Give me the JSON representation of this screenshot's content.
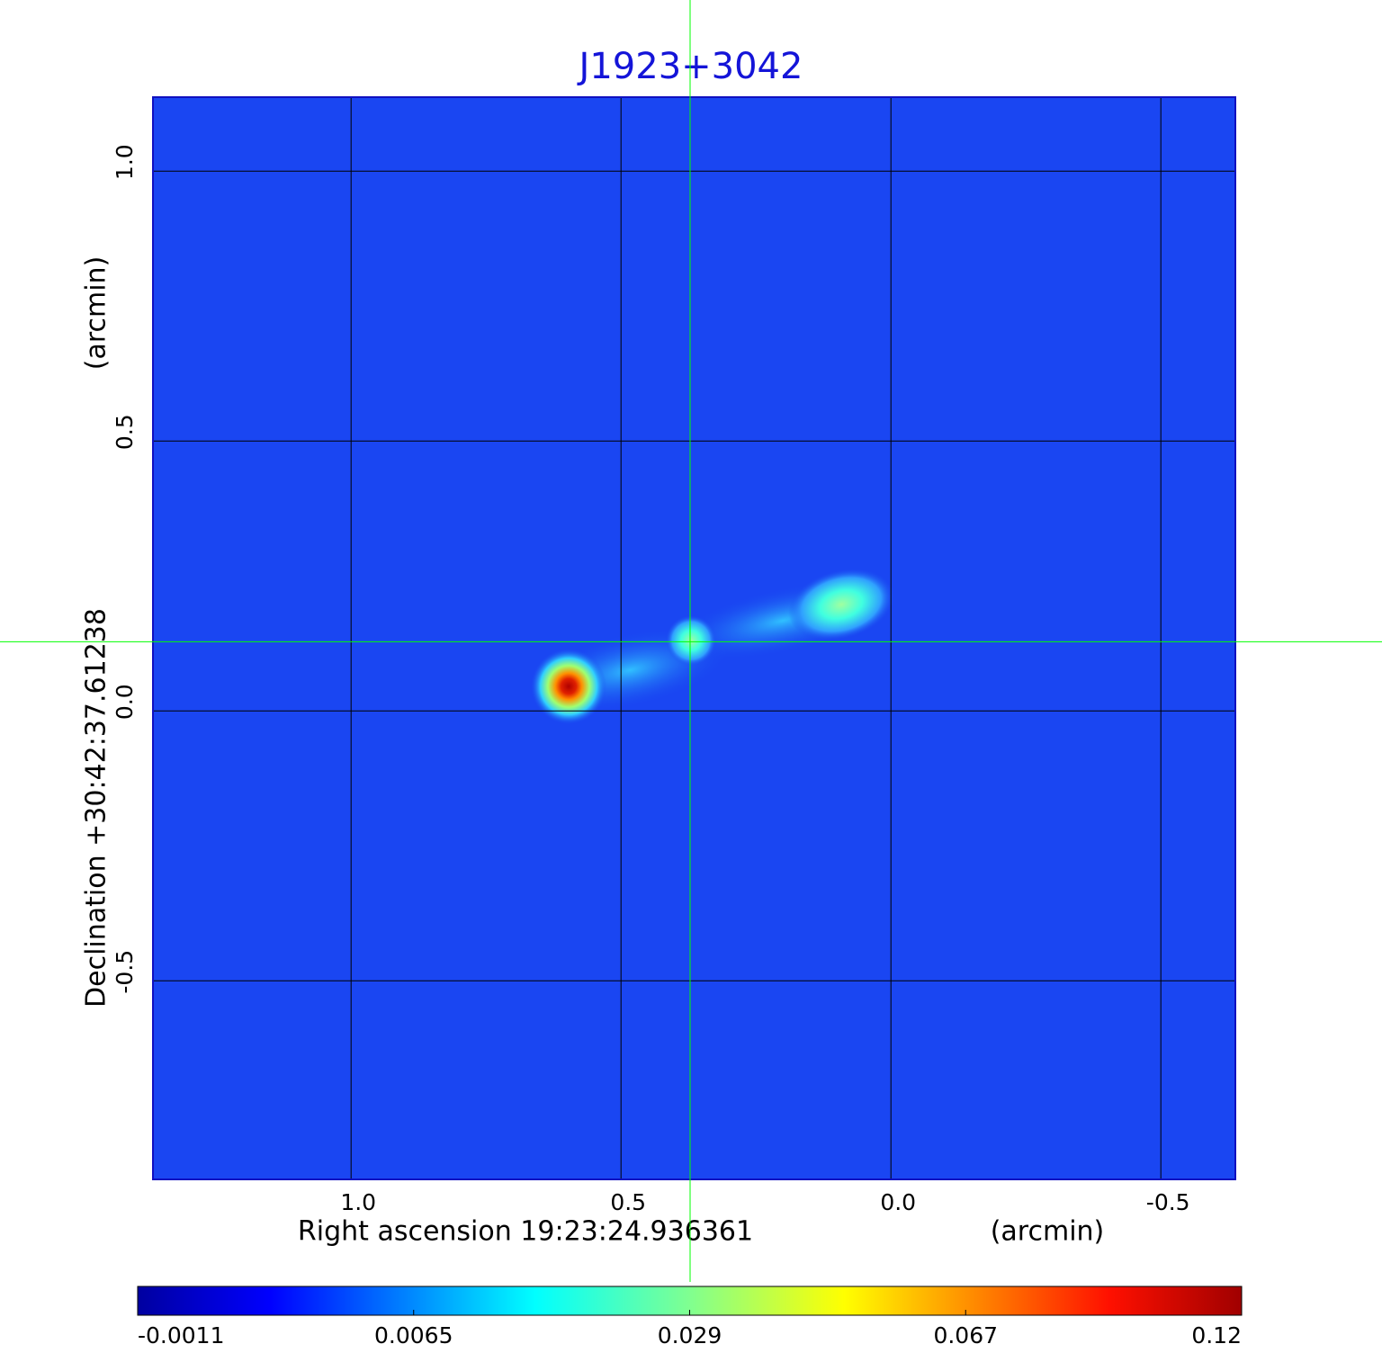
{
  "chart_data": {
    "type": "image",
    "title": "J1923+3042",
    "x_label": "Right ascension  19:23:24.936361",
    "x_unit": "(arcmin)",
    "y_label": "Declination  +30:42:37.61238",
    "y_unit": "(arcmin)",
    "xlim": [
      1.367,
      -0.638
    ],
    "ylim": [
      -0.868,
      1.137
    ],
    "xticks": [
      {
        "value": 1,
        "label": "1.0"
      },
      0.5,
      {
        "value": 0,
        "label": "0.0"
      },
      -0.5
    ],
    "yticks": [
      {
        "value": 1,
        "label": "1.0"
      },
      0.5,
      {
        "value": 0,
        "label": "0.0"
      },
      -0.5
    ],
    "grid": true,
    "colormap": "jet",
    "crosshair": {
      "x": 0.372,
      "y": 0.128,
      "color": "#00ff00"
    },
    "colorbar": {
      "ticks": [
        -0.0011,
        0.0065,
        0.029,
        0.067,
        0.12
      ]
    }
  }
}
